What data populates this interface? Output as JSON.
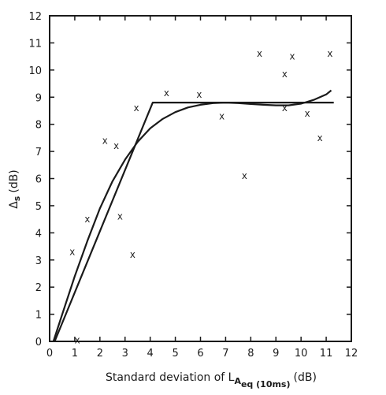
{
  "chart_data": {
    "type": "scatter",
    "xlabel": {
      "prefix": "Standard deviation of L",
      "subscript": "A",
      "subsubscript": "eq (10ms)",
      "suffix": "(dB)"
    },
    "ylabel": {
      "symbol": "Δ",
      "subscript": "s",
      "suffix": "(dB)"
    },
    "xlim": [
      0,
      12
    ],
    "ylim": [
      0,
      12
    ],
    "xticks": [
      "0",
      "1",
      "2",
      "3",
      "4",
      "5",
      "6",
      "7",
      "8",
      "9",
      "10",
      "11",
      "12"
    ],
    "yticks": [
      "0",
      "1",
      "2",
      "3",
      "4",
      "5",
      "6",
      "7",
      "8",
      "9",
      "10",
      "11",
      "12"
    ],
    "marker_symbol": "x",
    "grid": false,
    "series": [
      {
        "kind": "points",
        "points": [
          {
            "x": 0.9,
            "y": 3.3
          },
          {
            "x": 1.1,
            "y": 0.05
          },
          {
            "x": 1.5,
            "y": 4.5
          },
          {
            "x": 2.2,
            "y": 7.4
          },
          {
            "x": 2.65,
            "y": 7.2
          },
          {
            "x": 2.8,
            "y": 4.6
          },
          {
            "x": 3.3,
            "y": 3.2
          },
          {
            "x": 3.45,
            "y": 8.6
          },
          {
            "x": 4.65,
            "y": 9.15
          },
          {
            "x": 5.95,
            "y": 9.1
          },
          {
            "x": 6.85,
            "y": 8.3
          },
          {
            "x": 7.75,
            "y": 6.1
          },
          {
            "x": 8.35,
            "y": 10.6
          },
          {
            "x": 9.35,
            "y": 9.85
          },
          {
            "x": 9.35,
            "y": 8.6
          },
          {
            "x": 9.65,
            "y": 10.5
          },
          {
            "x": 10.25,
            "y": 8.4
          },
          {
            "x": 10.75,
            "y": 7.5
          },
          {
            "x": 11.15,
            "y": 10.6
          }
        ]
      },
      {
        "kind": "piecewise-linear-fit",
        "points": [
          {
            "x": 0.2,
            "y": 0
          },
          {
            "x": 4.1,
            "y": 8.8
          },
          {
            "x": 11.3,
            "y": 8.8
          }
        ]
      },
      {
        "kind": "smooth-fit",
        "points": [
          {
            "x": 0.15,
            "y": 0
          },
          {
            "x": 0.5,
            "y": 1.0
          },
          {
            "x": 1.0,
            "y": 2.4
          },
          {
            "x": 1.5,
            "y": 3.7
          },
          {
            "x": 2.0,
            "y": 4.9
          },
          {
            "x": 2.5,
            "y": 5.9
          },
          {
            "x": 3.0,
            "y": 6.7
          },
          {
            "x": 3.5,
            "y": 7.35
          },
          {
            "x": 4.0,
            "y": 7.85
          },
          {
            "x": 4.5,
            "y": 8.2
          },
          {
            "x": 5.0,
            "y": 8.45
          },
          {
            "x": 5.5,
            "y": 8.62
          },
          {
            "x": 6.0,
            "y": 8.72
          },
          {
            "x": 6.5,
            "y": 8.78
          },
          {
            "x": 7.0,
            "y": 8.8
          },
          {
            "x": 7.5,
            "y": 8.78
          },
          {
            "x": 8.0,
            "y": 8.75
          },
          {
            "x": 8.5,
            "y": 8.72
          },
          {
            "x": 9.0,
            "y": 8.7
          },
          {
            "x": 9.5,
            "y": 8.7
          },
          {
            "x": 10.0,
            "y": 8.76
          },
          {
            "x": 10.5,
            "y": 8.9
          },
          {
            "x": 11.0,
            "y": 9.1
          },
          {
            "x": 11.2,
            "y": 9.25
          }
        ]
      }
    ]
  }
}
